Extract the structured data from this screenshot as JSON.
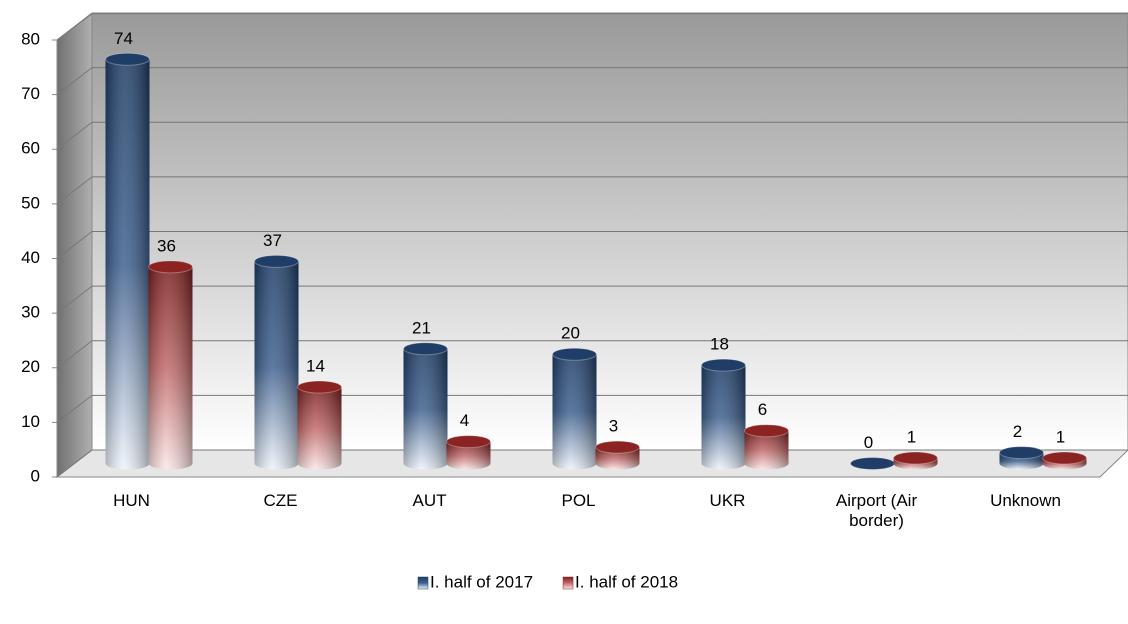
{
  "chart_data": {
    "type": "bar3d",
    "categories": [
      "HUN",
      "CZE",
      "AUT",
      "POL",
      "UKR",
      "Airport (Air border)",
      "Unknown"
    ],
    "series": [
      {
        "name": "I. half of 2017",
        "color": "#1f3d66",
        "values": [
          74,
          37,
          21,
          20,
          18,
          0,
          2
        ]
      },
      {
        "name": "I. half of 2018",
        "color": "#8b2323",
        "values": [
          36,
          14,
          4,
          3,
          6,
          1,
          1
        ]
      }
    ],
    "ylim": [
      0,
      80
    ],
    "yticks": [
      0,
      10,
      20,
      30,
      40,
      50,
      60,
      70,
      80
    ],
    "grid": true,
    "legend": "bottom"
  }
}
